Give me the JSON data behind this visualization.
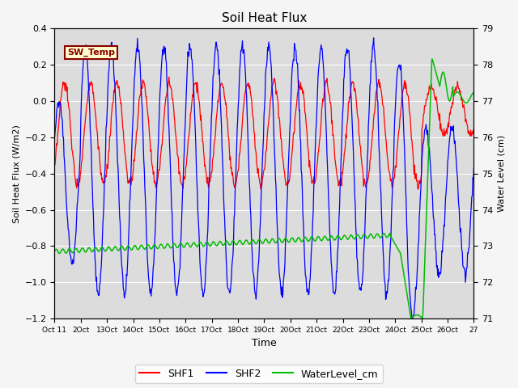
{
  "title": "Soil Heat Flux",
  "xlabel": "Time",
  "ylabel_left": "Soil Heat Flux (W/m2)",
  "ylabel_right": "Water Level (cm)",
  "ylim_left": [
    -1.2,
    0.4
  ],
  "ylim_right": [
    71.0,
    79.0
  ],
  "yticks_left": [
    -1.2,
    -1.0,
    -0.8,
    -0.6,
    -0.4,
    -0.2,
    0.0,
    0.2,
    0.4
  ],
  "yticks_right": [
    71.0,
    72.0,
    73.0,
    74.0,
    75.0,
    76.0,
    77.0,
    78.0,
    79.0
  ],
  "colors": {
    "SHF1": "#ff0000",
    "SHF2": "#0000ff",
    "WaterLevel_cm": "#00bb00",
    "plot_bg": "#dcdcdc",
    "fig_bg": "#f5f5f5",
    "grid": "#ffffff",
    "annotation_bg": "#ffffcc",
    "annotation_border": "#8b0000",
    "annotation_text": "#8b0000"
  },
  "annotation_text": "SW_Temp",
  "tick_labels": [
    "Oct 11",
    "2Oct 13",
    "Oct 14",
    "Oct 15",
    "Oct 16",
    "Oct 17",
    "Oct 18",
    "Oct 19",
    "Oct 20",
    "Oct 21",
    "Oct 22",
    "Oct 23",
    "Oct 24",
    "Oct 25",
    "Oct 26",
    "Oct 27"
  ],
  "figsize": [
    6.4,
    4.8
  ],
  "dpi": 100
}
